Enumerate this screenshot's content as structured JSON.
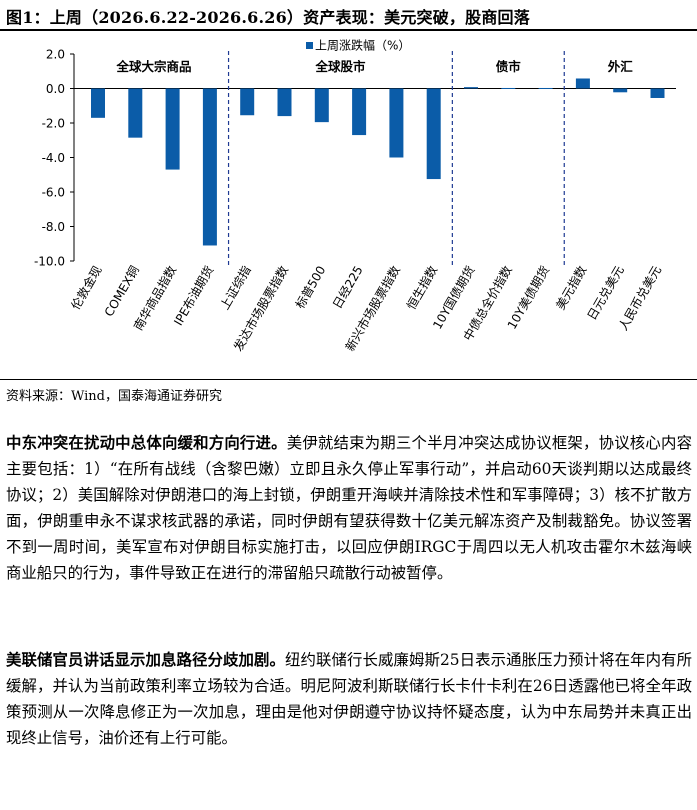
{
  "figure": {
    "title": "图1：上周（2026.6.22-2026.6.26）资产表现：美元突破，股商回落",
    "source": "资料来源：Wind，国泰海通证券研究"
  },
  "chart_data": {
    "type": "bar",
    "legend": "上周涨跌幅（%）",
    "legend_position": "top-center",
    "color": "#0b5ca8",
    "ylim": [
      -10,
      2
    ],
    "yticks": [
      "2.0",
      "0.0",
      "-2.0",
      "-4.0",
      "-6.0",
      "-8.0",
      "-10.0"
    ],
    "ytick_values": [
      2,
      0,
      -2,
      -4,
      -6,
      -8,
      -10
    ],
    "categories": [
      "伦敦金现",
      "COMEX铜",
      "南华商品指数",
      "IPE布油期货",
      "上证综指",
      "发达市场股票指数",
      "标普500",
      "日经225",
      "新兴市场股票指数",
      "恒生指数",
      "10Y国债期货",
      "中债总全价指数",
      "10Y美债期货",
      "美元指数",
      "日元兑美元",
      "人民币兑美元"
    ],
    "values": [
      -1.7,
      -2.85,
      -4.7,
      -9.1,
      -1.55,
      -1.6,
      -1.95,
      -2.7,
      -4.0,
      -5.25,
      0.08,
      0.03,
      0.03,
      0.58,
      -0.22,
      -0.55
    ],
    "groups": [
      {
        "label": "全球大宗商品",
        "start": 0,
        "end": 3
      },
      {
        "label": "全球股市",
        "start": 4,
        "end": 9
      },
      {
        "label": "债市",
        "start": 10,
        "end": 12
      },
      {
        "label": "外汇",
        "start": 13,
        "end": 15
      }
    ]
  },
  "paragraphs": [
    {
      "lead": "中东冲突在扰动中总体向缓和方向行进。",
      "body": "美伊就结束为期三个半月冲突达成协议框架，协议核心内容主要包括：1）“在所有战线（含黎巴嫩）立即且永久停止军事行动”，并启动60天谈判期以达成最终协议；2）美国解除对伊朗港口的海上封锁，伊朗重开海峡并清除技术性和军事障碍；3）核不扩散方面，伊朗重申永不谋求核武器的承诺，同时伊朗有望获得数十亿美元解冻资产及制裁豁免。协议签署不到一周时间，美军宣布对伊朗目标实施打击，以回应伊朗IRGC于周四以无人机攻击霍尔木兹海峡商业船只的行为，事件导致正在进行的滞留船只疏散行动被暂停。"
    },
    {
      "lead": "美联储官员讲话显示加息路径分歧加剧。",
      "body": "纽约联储行长威廉姆斯25日表示通胀压力预计将在年内有所缓解，并认为当前政策利率立场较为合适。明尼阿波利斯联储行长卡什卡利在26日透露他已将全年政策预测从一次降息修正为一次加息，理由是他对伊朗遵守协议持怀疑态度，认为中东局势并未真正出现终止信号，油价还有上行可能。"
    }
  ]
}
